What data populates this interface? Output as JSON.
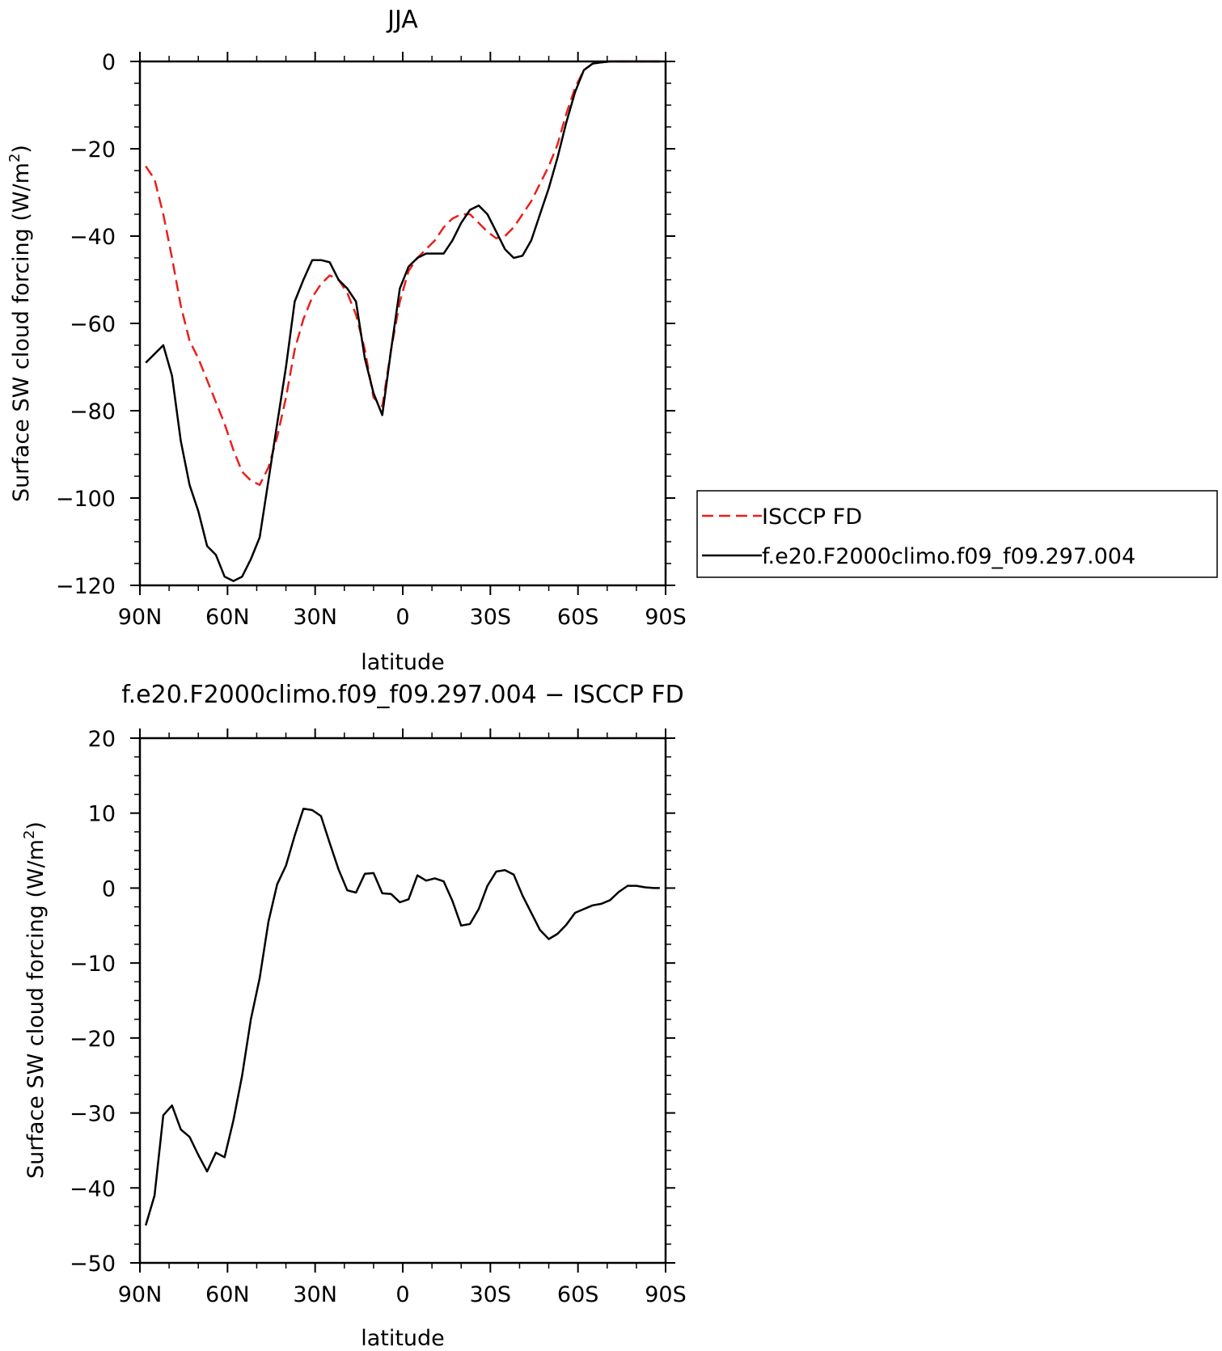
{
  "chart_data": [
    {
      "type": "line",
      "title": "JJA",
      "xlabel": "latitude",
      "ylabel": "Surface SW cloud forcing (W/m",
      "ylabel_sup": "2",
      "ylabel_close": ")",
      "xlim": [
        90,
        -90
      ],
      "ylim": [
        -120,
        0
      ],
      "x_ticks": [
        90,
        60,
        30,
        0,
        -30,
        -60,
        -90
      ],
      "x_tick_labels": [
        "90N",
        "60N",
        "30N",
        "0",
        "30S",
        "60S",
        "90S"
      ],
      "y_ticks": [
        0,
        -20,
        -40,
        -60,
        -80,
        -100,
        -120
      ],
      "y_tick_labels": [
        "0",
        "−20",
        "−40",
        "−60",
        "−80",
        "−100",
        "−120"
      ],
      "legend": {
        "placement": "right",
        "entries": [
          "ISCCP FD",
          "f.e20.F2000climo.f09_f09.297.004"
        ]
      },
      "series": [
        {
          "name": "ISCCP FD",
          "color": "#e8201c",
          "style": "dashed",
          "x": [
            88,
            85,
            82,
            79,
            76,
            73,
            70,
            67,
            64,
            61,
            58,
            55,
            52,
            49,
            46,
            43,
            40,
            37,
            34,
            31,
            28,
            25,
            22,
            19,
            16,
            13,
            10,
            7,
            4,
            1,
            -2,
            -5,
            -8,
            -11,
            -14,
            -17,
            -20,
            -23,
            -26,
            -29,
            -32,
            -35,
            -38,
            -41,
            -44,
            -47,
            -50,
            -53,
            -56,
            -59,
            -62,
            -65,
            -68,
            -71,
            -74,
            -77,
            -80,
            -83,
            -86,
            -88
          ],
          "y": [
            -24,
            -27,
            -35,
            -45,
            -56,
            -64,
            -68,
            -73,
            -78,
            -83,
            -89,
            -94,
            -96,
            -97,
            -93,
            -86,
            -77,
            -66,
            -59,
            -54,
            -51,
            -49,
            -50,
            -53,
            -58,
            -66,
            -77,
            -79,
            -66,
            -55,
            -48,
            -45,
            -43,
            -41,
            -38,
            -36,
            -35,
            -35,
            -37,
            -39,
            -40.5,
            -40,
            -38,
            -35,
            -32,
            -28,
            -24,
            -19,
            -12,
            -6,
            -2,
            -0.5,
            -0.2,
            0,
            0,
            0,
            0,
            0,
            0,
            0
          ]
        },
        {
          "name": "f.e20.F2000climo.f09_f09.297.004",
          "color": "#000000",
          "style": "solid",
          "x": [
            88,
            85,
            82,
            79,
            76,
            73,
            70,
            67,
            64,
            61,
            58,
            55,
            52,
            49,
            46,
            43,
            40,
            37,
            34,
            31,
            28,
            25,
            22,
            19,
            16,
            13,
            10,
            7,
            4,
            1,
            -2,
            -5,
            -8,
            -11,
            -14,
            -17,
            -20,
            -23,
            -26,
            -29,
            -32,
            -35,
            -38,
            -41,
            -44,
            -47,
            -50,
            -53,
            -56,
            -59,
            -62,
            -65,
            -68,
            -71,
            -74,
            -77,
            -80,
            -83,
            -86,
            -88
          ],
          "y": [
            -69,
            -67,
            -65,
            -72,
            -87,
            -97,
            -103,
            -111,
            -113,
            -118,
            -119,
            -118,
            -114,
            -109,
            -96,
            -83,
            -70,
            -55,
            -50,
            -45.5,
            -45.5,
            -46,
            -50,
            -52,
            -55,
            -68,
            -76,
            -81,
            -66,
            -52,
            -47,
            -45,
            -44,
            -44,
            -44,
            -41,
            -37,
            -34,
            -33,
            -35,
            -39,
            -43,
            -45,
            -44.5,
            -41,
            -35,
            -29,
            -22,
            -14,
            -7,
            -2,
            -0.5,
            -0.2,
            0,
            0,
            0,
            0,
            0,
            0,
            0
          ]
        }
      ]
    },
    {
      "type": "line",
      "title": "f.e20.F2000climo.f09_f09.297.004 − ISCCP FD",
      "xlabel": "latitude",
      "ylabel": "Surface SW cloud forcing (W/m",
      "ylabel_sup": "2",
      "ylabel_close": ")",
      "xlim": [
        90,
        -90
      ],
      "ylim": [
        -50,
        20
      ],
      "x_ticks": [
        90,
        60,
        30,
        0,
        -30,
        -60,
        -90
      ],
      "x_tick_labels": [
        "90N",
        "60N",
        "30N",
        "0",
        "30S",
        "60S",
        "90S"
      ],
      "y_ticks": [
        20,
        10,
        0,
        -10,
        -20,
        -30,
        -40,
        -50
      ],
      "y_tick_labels": [
        "20",
        "10",
        "0",
        "−10",
        "−20",
        "−30",
        "−40",
        "−50"
      ],
      "series": [
        {
          "color": "#000000",
          "style": "solid",
          "x": [
            88,
            85,
            82,
            79,
            76,
            73,
            70,
            67,
            64,
            61,
            58,
            55,
            52,
            49,
            46,
            43,
            40,
            37,
            34,
            31,
            28,
            25,
            22,
            19,
            16,
            13,
            10,
            7,
            4,
            1,
            -2,
            -5,
            -8,
            -11,
            -14,
            -17,
            -20,
            -23,
            -26,
            -29,
            -32,
            -35,
            -38,
            -41,
            -44,
            -47,
            -50,
            -53,
            -56,
            -59,
            -62,
            -65,
            -68,
            -71,
            -74,
            -77,
            -80,
            -83,
            -86,
            -88
          ],
          "y": [
            -45,
            -41,
            -30.3,
            -29,
            -32.2,
            -33.2,
            -35.6,
            -37.8,
            -35.3,
            -35.9,
            -31,
            -25,
            -17.5,
            -12,
            -4.5,
            0.5,
            3,
            7,
            10.6,
            10.4,
            9.6,
            6,
            2.5,
            -0.3,
            -0.6,
            1.9,
            2,
            -0.7,
            -0.8,
            -1.9,
            -1.5,
            1.7,
            1,
            1.3,
            0.9,
            -1.7,
            -5,
            -4.8,
            -2.8,
            0.3,
            2.2,
            2.4,
            1.8,
            -1,
            -3.3,
            -5.6,
            -6.8,
            -6.1,
            -4.9,
            -3.3,
            -2.8,
            -2.3,
            -2.1,
            -1.6,
            -0.5,
            0.3,
            0.3,
            0.1,
            0,
            0
          ]
        }
      ]
    }
  ]
}
